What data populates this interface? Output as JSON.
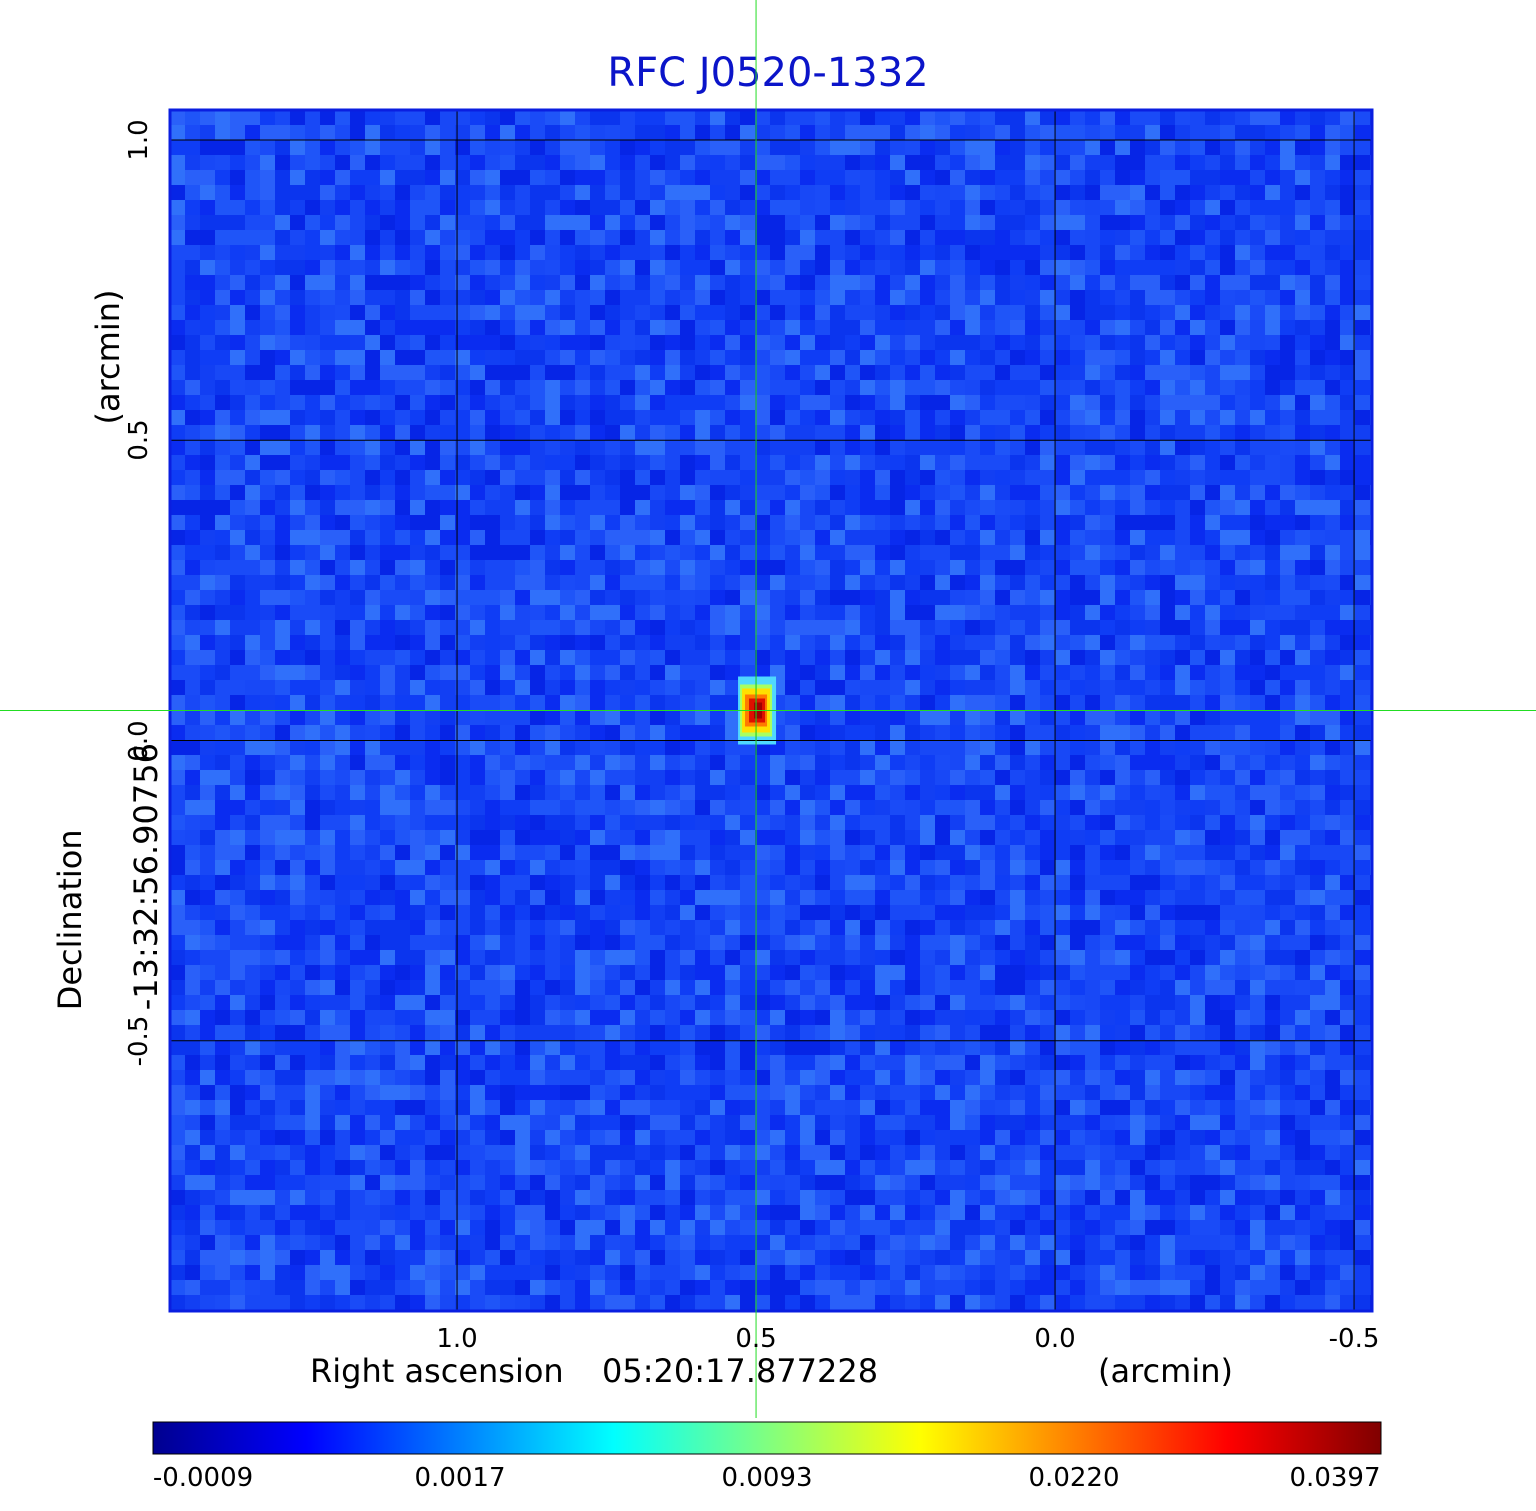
{
  "chart_data": {
    "type": "heatmap",
    "title": "RFC J0520-1332",
    "xlabel_prefix": "Right ascension",
    "xlabel_center": "05:20:17.877228",
    "xlabel_unit": "(arcmin)",
    "ylabel_prefix": "Declination",
    "ylabel_center": "-13:32:56.90756",
    "ylabel_unit": "(arcmin)",
    "x_ticks": [
      "1.0",
      "0.5",
      "0.0",
      "-0.5"
    ],
    "x_tick_values": [
      1.0,
      0.5,
      0.0,
      -0.5
    ],
    "y_ticks": [
      "1.0",
      "0.5",
      "0.0",
      "-0.5"
    ],
    "y_tick_values": [
      1.0,
      0.5,
      0.0,
      -0.5
    ],
    "xlim": [
      1.48,
      -0.53
    ],
    "ylim": [
      -0.95,
      1.05
    ],
    "grid": true,
    "colormap": "jet",
    "colorbar_ticks": [
      "-0.0009",
      "0.0017",
      "0.0093",
      "0.0220",
      "0.0397"
    ],
    "colorbar_range": [
      -0.0009,
      0.0397
    ],
    "source": {
      "x": 0.5,
      "y": 0.05,
      "peak": 0.0397
    },
    "crosshair": {
      "x": 0.5,
      "y": 0.05,
      "color": "#22dd22"
    },
    "frame_color": "#0a1ee0",
    "grid_color": "#000000",
    "title_color": "#0b14c9"
  }
}
